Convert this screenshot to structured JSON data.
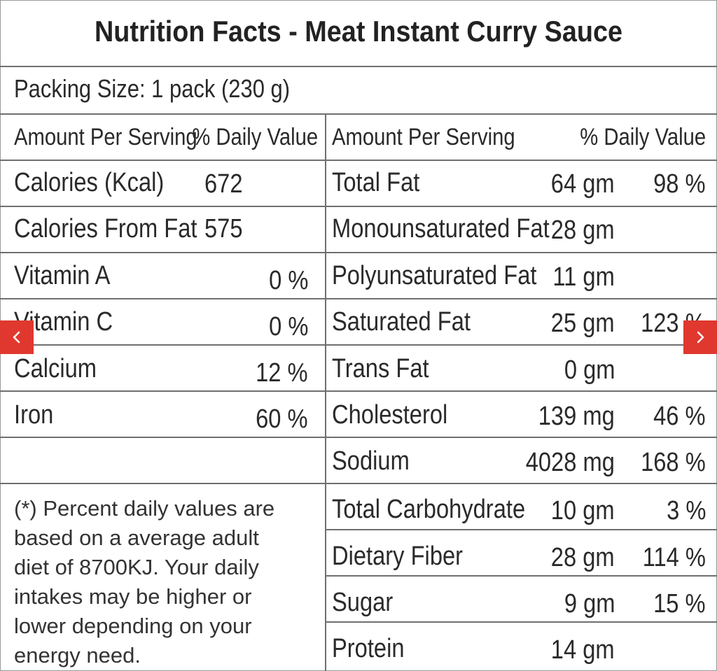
{
  "title": "Nutrition Facts - Meat Instant Curry Sauce",
  "packing_size": "Packing Size: 1 pack (230 g)",
  "headers": {
    "left_amount": "Amount Per Serving",
    "left_dv": "% Daily Value",
    "right_amount": "Amount Per Serving",
    "right_dv": "% Daily Value"
  },
  "left_rows": [
    {
      "label": "Calories (Kcal)",
      "amount": "672",
      "dv": ""
    },
    {
      "label": "Calories From Fat",
      "amount": "575",
      "dv": ""
    },
    {
      "label": "Vitamin A",
      "amount": "",
      "dv": "0 %"
    },
    {
      "label": "Vitamin C",
      "amount": "",
      "dv": "0 %"
    },
    {
      "label": "Calcium",
      "amount": "",
      "dv": "12 %"
    },
    {
      "label": "Iron",
      "amount": "",
      "dv": "60 %"
    }
  ],
  "right_rows": [
    {
      "label": "Total Fat",
      "amount": "64 gm",
      "dv": "98 %"
    },
    {
      "label": "Monounsaturated Fat",
      "amount": "28 gm",
      "dv": ""
    },
    {
      "label": "Polyunsaturated Fat",
      "amount": "11 gm",
      "dv": ""
    },
    {
      "label": "Saturated Fat",
      "amount": "25 gm",
      "dv": "123 %"
    },
    {
      "label": "Trans Fat",
      "amount": "0 gm",
      "dv": ""
    },
    {
      "label": "Cholesterol",
      "amount": "139 mg",
      "dv": "46 %"
    },
    {
      "label": "Sodium",
      "amount": "4028 mg",
      "dv": "168 %"
    },
    {
      "label": "Total Carbohydrate",
      "amount": "10 gm",
      "dv": "3 %"
    },
    {
      "label": "Dietary Fiber",
      "amount": "28 gm",
      "dv": "114 %"
    },
    {
      "label": "Sugar",
      "amount": "9 gm",
      "dv": "15 %"
    },
    {
      "label": "Protein",
      "amount": "14 gm",
      "dv": ""
    }
  ],
  "footnote_lines": [
    "(*) Percent daily values are",
    "based on a average adult",
    "diet of 8700KJ. Your daily",
    "intakes may be higher or",
    "lower depending on your",
    "energy need."
  ],
  "nav": {
    "prev_icon": "chevron-left-icon",
    "next_icon": "chevron-right-icon",
    "accent": "#e0382f"
  }
}
